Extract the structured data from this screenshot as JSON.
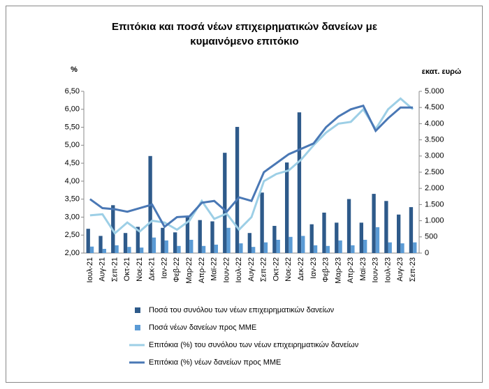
{
  "chart_data": {
    "type": "bar-line",
    "title": "Επιτόκια και ποσά νέων επιχειρηματικών δανείων με κυμαινόμενο επιτόκιο",
    "y_label": "%",
    "y2_label": "εκατ. ευρώ",
    "categories": [
      "Ιουλ-21",
      "Αυγ-21",
      "Σεπ-21",
      "Οκτ-21",
      "Νοε-21",
      "Δεκ-21",
      "Ιαν-22",
      "Φεβ-22",
      "Μαρ-22",
      "Απρ-22",
      "Μαϊ-22",
      "Ιουν-22",
      "Ιουλ-22",
      "Αυγ-22",
      "Σεπ-22",
      "Οκτ-22",
      "Νοε-22",
      "Δεκ-22",
      "Ιαν-23",
      "Φεβ-23",
      "Μαρ-23",
      "Απρ-23",
      "Μαϊ-23",
      "Ιουν-23",
      "Ιουλ-23",
      "Αυγ-23",
      "Σεπ-23"
    ],
    "series": [
      {
        "name": "Ποσά του συνόλου των νέων επιχειρηματικών δανείων",
        "type": "bar",
        "axis": "y2",
        "color": "#2e5a8a",
        "values": [
          750,
          530,
          1480,
          620,
          810,
          3000,
          780,
          640,
          1150,
          1020,
          980,
          3100,
          3900,
          620,
          1870,
          840,
          2800,
          4350,
          890,
          1250,
          940,
          1670,
          940,
          1830,
          1610,
          1190,
          1420
        ]
      },
      {
        "name": "Ποσά νέων δανείων προς ΜΜΕ",
        "type": "bar",
        "axis": "y2",
        "color": "#5b9bd5",
        "values": [
          200,
          130,
          240,
          190,
          170,
          480,
          390,
          220,
          410,
          220,
          260,
          780,
          300,
          190,
          330,
          410,
          500,
          530,
          240,
          220,
          390,
          240,
          410,
          800,
          330,
          300,
          330
        ]
      },
      {
        "name": "Επιτόκια (%) του συνόλου των νέων επιχειρηματικών δανείων",
        "type": "line",
        "axis": "y",
        "color": "#9dcfe6",
        "values": [
          3.05,
          3.08,
          2.55,
          2.85,
          2.6,
          2.9,
          2.85,
          2.65,
          2.9,
          3.45,
          2.95,
          3.1,
          2.65,
          3.0,
          4.0,
          4.2,
          4.3,
          4.6,
          5.0,
          5.35,
          5.6,
          5.65,
          6.0,
          5.45,
          6.0,
          6.3,
          6.0
        ]
      },
      {
        "name": "Επιτόκια (%) νέων δανείων προς ΜΜΕ",
        "type": "line",
        "axis": "y",
        "color": "#4a78b5",
        "values": [
          3.5,
          3.25,
          3.22,
          3.15,
          3.25,
          3.35,
          2.73,
          3.0,
          3.02,
          3.4,
          3.45,
          3.15,
          3.55,
          3.45,
          4.25,
          4.5,
          4.75,
          4.9,
          5.05,
          5.5,
          5.8,
          6.0,
          6.1,
          5.4,
          5.75,
          6.05,
          6.05
        ]
      }
    ],
    "ylim": [
      2,
      6.5
    ],
    "yticks": [
      {
        "value": 2,
        "label": "2,00"
      },
      {
        "value": 2.5,
        "label": "2,50"
      },
      {
        "value": 3,
        "label": "3,00"
      },
      {
        "value": 3.5,
        "label": "3,50"
      },
      {
        "value": 4,
        "label": "4,00"
      },
      {
        "value": 4.5,
        "label": "4,50"
      },
      {
        "value": 5,
        "label": "5,00"
      },
      {
        "value": 5.5,
        "label": "5,50"
      },
      {
        "value": 6,
        "label": "6,00"
      },
      {
        "value": 6.5,
        "label": "6,50"
      }
    ],
    "y2lim": [
      0,
      5000
    ],
    "y2ticks": [
      0,
      500,
      {
        "value": 1000,
        "label": "1.000"
      },
      {
        "value": 1500,
        "label": "1.500"
      },
      {
        "value": 2000,
        "label": "2.000"
      },
      {
        "value": 2500,
        "label": "2.500"
      },
      {
        "value": 3000,
        "label": "3.000"
      },
      {
        "value": 3500,
        "label": "3.500"
      },
      {
        "value": 4000,
        "label": "4.000"
      },
      {
        "value": 4500,
        "label": "4.500"
      },
      {
        "value": 5000,
        "label": "5.000"
      }
    ]
  }
}
